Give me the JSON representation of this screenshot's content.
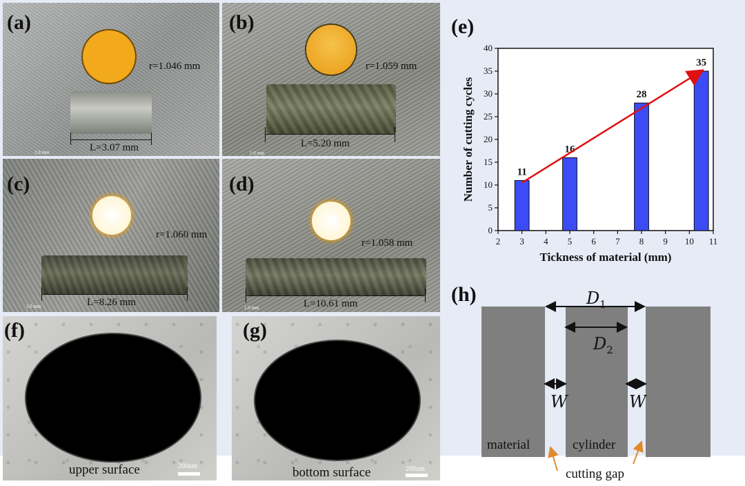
{
  "panels": {
    "a": {
      "label": "(a)",
      "radius": "r=1.046 mm",
      "length": "L=3.07 mm",
      "scale": "1.0 mm"
    },
    "b": {
      "label": "(b)",
      "radius": "r=1.059 mm",
      "length": "L=5.20 mm",
      "scale": "1.0 mm"
    },
    "c": {
      "label": "(c)",
      "radius": "r=1.060 mm",
      "length": "L=8.26 mm",
      "scale": "1.0 mm"
    },
    "d": {
      "label": "(d)",
      "radius": "r=1.058 mm",
      "length": "L=10.61 mm",
      "scale": "1.0 mm"
    },
    "e": {
      "label": "(e)"
    },
    "f": {
      "label": "(f)",
      "caption": "upper surface",
      "scale": "200um"
    },
    "g": {
      "label": "(g)",
      "caption": "bottom surface",
      "scale": "200um"
    },
    "h": {
      "label": "(h)",
      "d1": "D",
      "d1_sub": "1",
      "d2": "D",
      "d2_sub": "2",
      "w_left": "W",
      "w_right": "W",
      "material": "material",
      "cylinder": "cylinder",
      "gap": "cutting gap"
    }
  },
  "colors": {
    "bar": "#3b4cf5",
    "arrow": "#e01010",
    "block": "#7f7f7f",
    "hole_a": "#f2a91c",
    "hole_c": "#fffbea"
  },
  "chart_data": {
    "type": "bar",
    "x": [
      3,
      5,
      8,
      10.5
    ],
    "values": [
      11,
      16,
      28,
      35
    ],
    "data_labels": [
      "11",
      "16",
      "28",
      "35"
    ],
    "xlabel": "Tickness of material (mm)",
    "ylabel": "Number of cutting cycles",
    "xlim": [
      2,
      11
    ],
    "ylim": [
      0,
      40
    ],
    "xticks": [
      "2",
      "3",
      "4",
      "5",
      "6",
      "7",
      "8",
      "9",
      "10",
      "11"
    ],
    "yticks": [
      "0",
      "5",
      "10",
      "15",
      "20",
      "25",
      "30",
      "35",
      "40"
    ],
    "trend_arrow": {
      "from": [
        3,
        10.5
      ],
      "to": [
        10.5,
        35
      ]
    },
    "grid": false,
    "bar_color": "#3b4cf5"
  }
}
